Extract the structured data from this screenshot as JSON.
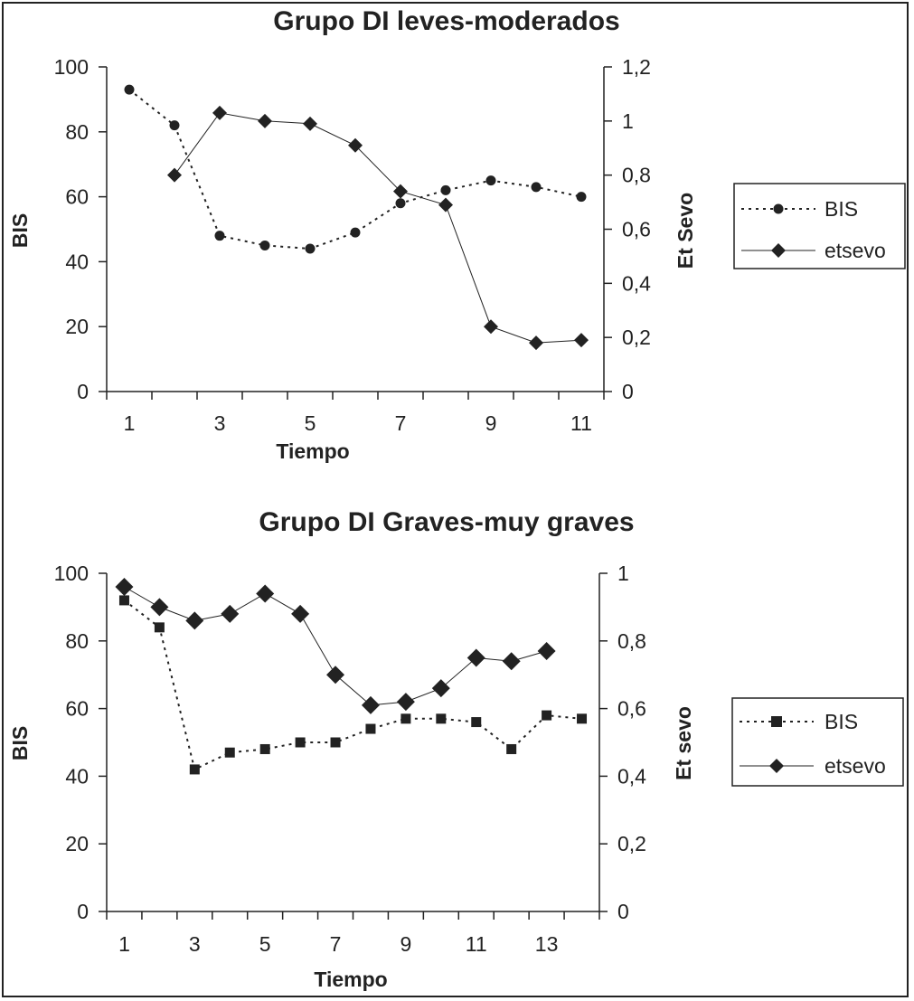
{
  "chart_data": [
    {
      "type": "line",
      "title": "Grupo DI leves-moderados",
      "xlabel": "Tiempo",
      "ylabel": "BIS",
      "y2label": "Et Sevo",
      "x": [
        1,
        2,
        3,
        4,
        5,
        6,
        7,
        8,
        9,
        10,
        11
      ],
      "xticks": [
        "1",
        "3",
        "5",
        "7",
        "9",
        "11"
      ],
      "xlim": [
        0.5,
        11.5
      ],
      "ylim": [
        0,
        100
      ],
      "yticks": [
        "0",
        "20",
        "40",
        "60",
        "80",
        "100"
      ],
      "y2lim": [
        0,
        1.2
      ],
      "y2ticks": [
        "0",
        "0,2",
        "0,4",
        "0,6",
        "0,8",
        "1",
        "1,2"
      ],
      "legend_position": "right",
      "series": [
        {
          "name": "BIS",
          "axis": "left",
          "marker": "circle",
          "style": "dotted",
          "values": [
            93,
            82,
            48,
            45,
            44,
            49,
            58,
            62,
            65,
            63,
            60
          ]
        },
        {
          "name": "etsevo",
          "axis": "right",
          "marker": "diamond",
          "style": "solid",
          "values": [
            null,
            0.8,
            1.03,
            1.0,
            0.99,
            0.91,
            0.74,
            0.69,
            0.24,
            0.18,
            0.19
          ]
        }
      ]
    },
    {
      "type": "line",
      "title": "Grupo DI Graves-muy graves",
      "xlabel": "Tiempo",
      "ylabel": "BIS",
      "y2label": "Et sevo",
      "x": [
        1,
        2,
        3,
        4,
        5,
        6,
        7,
        8,
        9,
        10,
        11,
        12,
        13,
        14
      ],
      "xticks": [
        "1",
        "3",
        "5",
        "7",
        "9",
        "11",
        "13"
      ],
      "xlim": [
        0.5,
        14.5
      ],
      "ylim": [
        0,
        100
      ],
      "yticks": [
        "0",
        "20",
        "40",
        "60",
        "80",
        "100"
      ],
      "y2lim": [
        0,
        1
      ],
      "y2ticks": [
        "0",
        "0,2",
        "0,4",
        "0,6",
        "0,8",
        "1"
      ],
      "legend_position": "right",
      "series": [
        {
          "name": "BIS",
          "axis": "left",
          "marker": "square",
          "style": "dotted",
          "values": [
            92,
            84,
            42,
            47,
            48,
            50,
            50,
            54,
            57,
            57,
            56,
            48,
            58,
            57
          ]
        },
        {
          "name": "etsevo",
          "axis": "right",
          "marker": "diamond",
          "style": "solid",
          "values": [
            0.96,
            0.9,
            0.86,
            0.88,
            0.94,
            0.88,
            0.7,
            0.61,
            0.62,
            0.66,
            0.75,
            0.74,
            0.77,
            null
          ]
        }
      ]
    }
  ]
}
